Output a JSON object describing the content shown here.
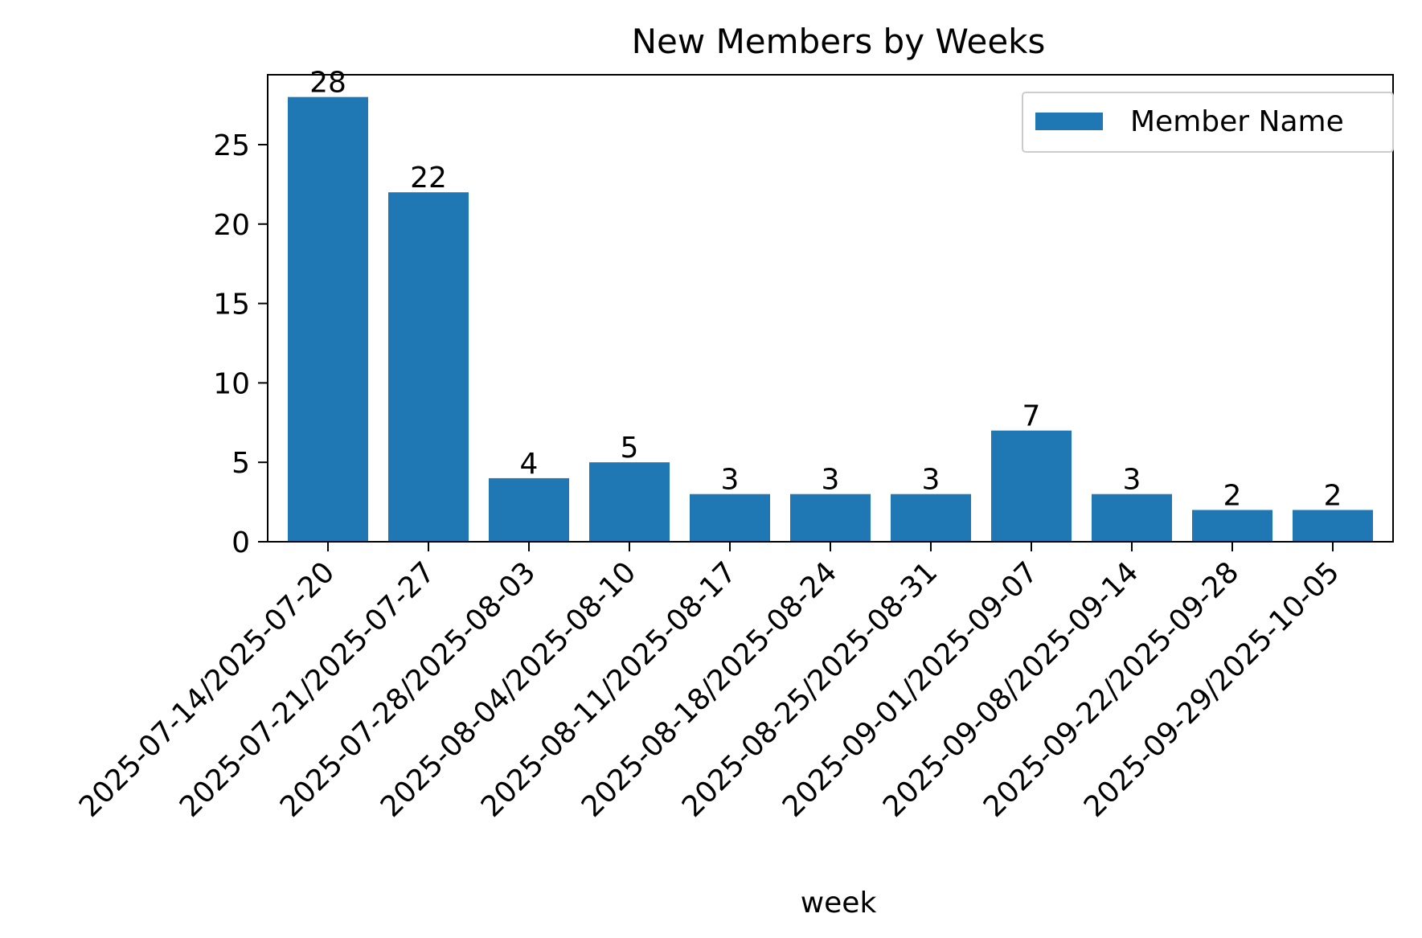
{
  "chart_data": {
    "type": "bar",
    "title": "New Members by Weeks",
    "xlabel": "week",
    "ylabel": "",
    "ylim": [
      0,
      29.4
    ],
    "yticks": [
      0,
      5,
      10,
      15,
      20,
      25
    ],
    "categories": [
      "2025-07-14/2025-07-20",
      "2025-07-21/2025-07-27",
      "2025-07-28/2025-08-03",
      "2025-08-04/2025-08-10",
      "2025-08-11/2025-08-17",
      "2025-08-18/2025-08-24",
      "2025-08-25/2025-08-31",
      "2025-09-01/2025-09-07",
      "2025-09-08/2025-09-14",
      "2025-09-22/2025-09-28",
      "2025-09-29/2025-10-05"
    ],
    "series": [
      {
        "name": "Member Name",
        "color": "#1f77b4",
        "values": [
          28,
          22,
          4,
          5,
          3,
          3,
          3,
          7,
          3,
          2,
          2
        ]
      }
    ],
    "legend": {
      "position": "top-right"
    },
    "grid": false,
    "data_labels": true
  }
}
